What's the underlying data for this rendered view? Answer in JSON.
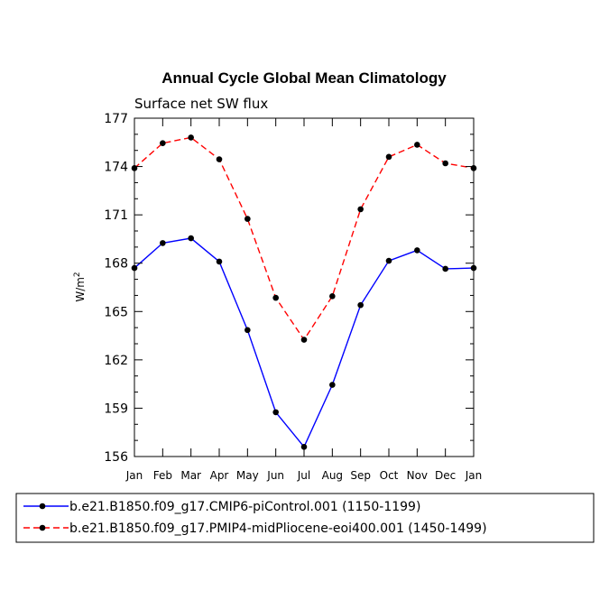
{
  "chart_data": {
    "type": "line",
    "title": "Annual Cycle Global Mean Climatology",
    "subtitle": "Surface net SW flux",
    "ylabel_base": "W/m",
    "ylabel_sup": "2",
    "xlabel": "",
    "categories": [
      "Jan",
      "Feb",
      "Mar",
      "Apr",
      "May",
      "Jun",
      "Jul",
      "Aug",
      "Sep",
      "Oct",
      "Nov",
      "Dec",
      "Jan"
    ],
    "ylim": [
      156,
      177
    ],
    "yticks": [
      156,
      159,
      162,
      165,
      168,
      171,
      174,
      177
    ],
    "series": [
      {
        "name": "b.e21.B1850.f09_g17.CMIP6-piControl.001 (1150-1199)",
        "color": "#0000ff",
        "dash": "solid",
        "values": [
          167.7,
          169.25,
          169.55,
          168.1,
          163.85,
          158.75,
          156.6,
          160.45,
          165.4,
          168.15,
          168.8,
          167.65,
          167.7
        ]
      },
      {
        "name": "b.e21.B1850.f09_g17.PMIP4-midPliocene-eoi400.001 (1450-1499)",
        "color": "#ff0000",
        "dash": "dashed",
        "values": [
          173.9,
          175.45,
          175.8,
          174.45,
          170.75,
          165.85,
          163.25,
          165.95,
          171.35,
          174.6,
          175.35,
          174.2,
          173.9
        ]
      }
    ]
  }
}
